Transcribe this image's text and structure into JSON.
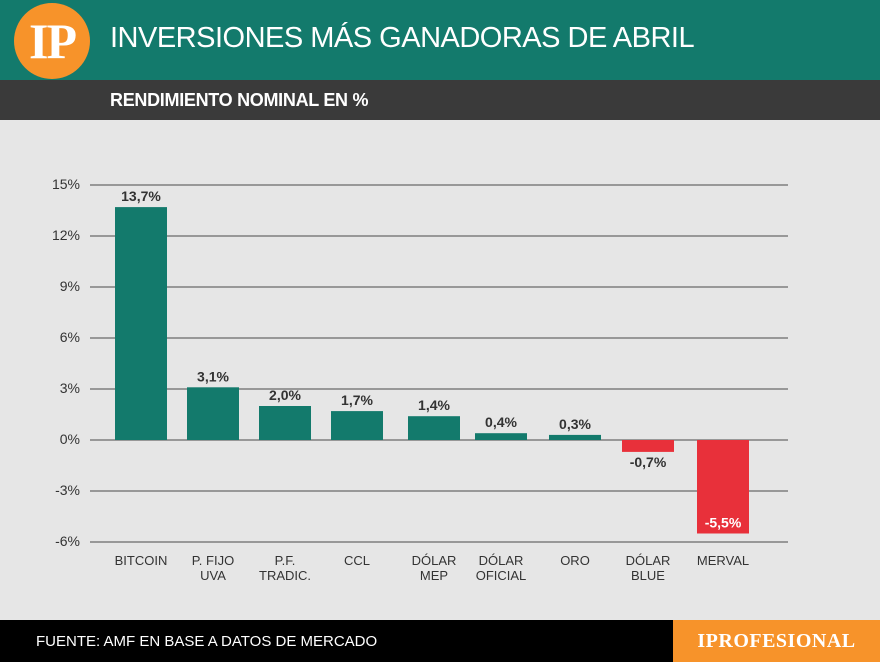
{
  "header": {
    "logo_text": "IP",
    "title": "INVERSIONES MÁS GANADORAS DE ABRIL",
    "subtitle": "RENDIMIENTO NOMINAL EN %"
  },
  "footer": {
    "source": "FUENTE: AMF EN BASE A DATOS DE MERCADO",
    "brand": "IPROFESIONAL"
  },
  "colors": {
    "positive": "#137a6c",
    "negative": "#e8303a",
    "header_bg": "#137a6c",
    "subheader_bg": "#3a3a3a",
    "accent": "#f7932a"
  },
  "chart_data": {
    "type": "bar",
    "title": "INVERSIONES MÁS GANADORAS DE ABRIL",
    "subtitle": "RENDIMIENTO NOMINAL EN %",
    "categories": [
      [
        "BITCOIN"
      ],
      [
        "P. FIJO",
        "UVA"
      ],
      [
        "P.F.",
        "TRADIC."
      ],
      [
        "CCL"
      ],
      [
        "DÓLAR",
        "MEP"
      ],
      [
        "DÓLAR",
        "OFICIAL"
      ],
      [
        "ORO"
      ],
      [
        "DÓLAR",
        "BLUE"
      ],
      [
        "MERVAL"
      ]
    ],
    "values": [
      13.7,
      3.1,
      2.0,
      1.7,
      1.4,
      0.4,
      0.3,
      -0.7,
      -5.5
    ],
    "data_labels": [
      "13,7%",
      "3,1%",
      "2,0%",
      "1,7%",
      "1,4%",
      "0,4%",
      "0,3%",
      "-0,7%",
      "-5,5%"
    ],
    "ylim": [
      -6,
      15
    ],
    "yticks": [
      15,
      12,
      9,
      6,
      3,
      0,
      -3,
      -6
    ],
    "ytick_labels": [
      "15%",
      "12%",
      "9%",
      "6%",
      "3%",
      "0%",
      "-3%",
      "-6%"
    ],
    "grid": true,
    "legend": "none"
  }
}
